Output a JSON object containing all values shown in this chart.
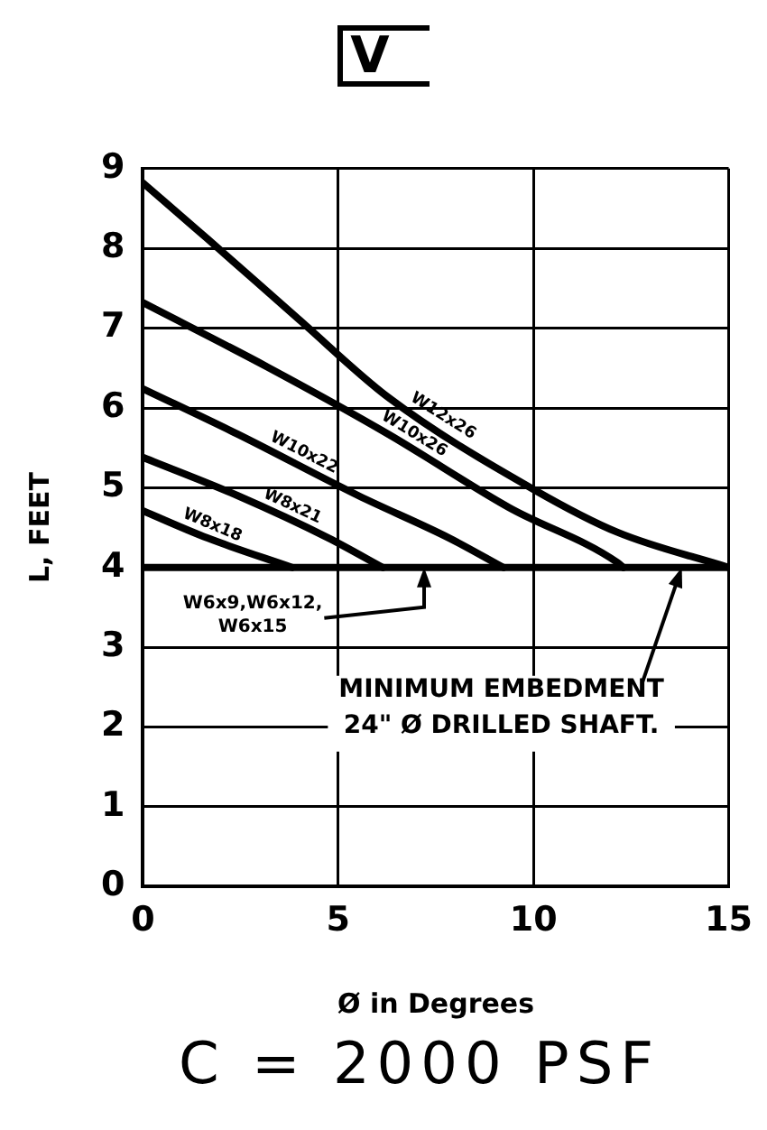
{
  "chart_data": {
    "type": "line",
    "title": "V",
    "xlabel": "Ø in Degrees",
    "ylabel": "L, FEET",
    "xlim": [
      0,
      15
    ],
    "ylim": [
      0,
      9
    ],
    "xticks": [
      0,
      5,
      10,
      15
    ],
    "yticks": [
      0,
      1,
      2,
      3,
      4,
      5,
      6,
      7,
      8,
      9
    ],
    "grid": true,
    "legend": false,
    "marker": "none",
    "line_style": "solid",
    "series": [
      {
        "name": "W12x26",
        "color": "#000000",
        "x": [
          0,
          1.65,
          3.97,
          6.29,
          10,
          12.16,
          15
        ],
        "values": [
          8.82,
          8.12,
          7.12,
          6.13,
          4.98,
          4.44,
          4
        ]
      },
      {
        "name": "W10x26",
        "color": "#000000",
        "x": [
          0,
          3.2,
          6.29,
          9.38,
          12.16,
          12.3
        ],
        "values": [
          7.32,
          6.51,
          5.67,
          4.75,
          4.06,
          4
        ]
      },
      {
        "name": "W10x22",
        "color": "#000000",
        "x": [
          0,
          2.43,
          5.52,
          7.84,
          9.23
        ],
        "values": [
          6.24,
          5.67,
          4.9,
          4.37,
          4
        ]
      },
      {
        "name": "W8x21",
        "color": "#000000",
        "x": [
          0,
          2.43,
          4.75,
          6.14
        ],
        "values": [
          5.38,
          4.9,
          4.37,
          4
        ]
      },
      {
        "name": "W8x18",
        "color": "#000000",
        "x": [
          0,
          1.65,
          3.82
        ],
        "values": [
          4.71,
          4.37,
          4
        ]
      }
    ],
    "ref_lines": [
      {
        "axis": "y",
        "value": 4,
        "color": "#000000"
      }
    ],
    "annotations": [
      {
        "text": "W6x9,W6x12,\nW6x15",
        "x": 7.2,
        "y": 4
      },
      {
        "text": "MINIMUM EMBEDMENT\n24\" Ø DRILLED SHAFT.",
        "x": 13.8,
        "y": 4
      },
      "C = 2000 PSF"
    ]
  }
}
